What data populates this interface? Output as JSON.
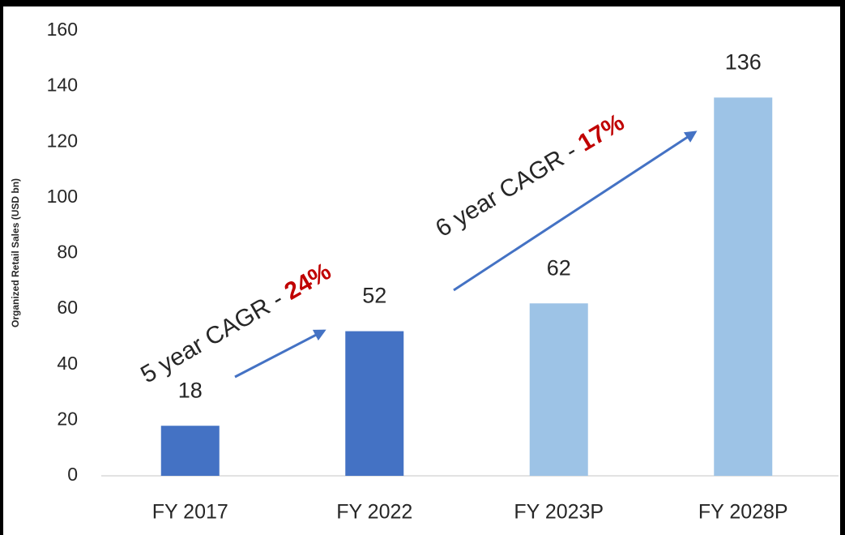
{
  "chart_data": {
    "type": "bar",
    "y_label": "Organized Retail Sales (USD bn)",
    "categories": [
      "FY 2017",
      "FY 2022",
      "FY 2023P",
      "FY 2028P"
    ],
    "values": [
      18,
      52,
      62,
      136
    ],
    "colors": [
      "#4472c4",
      "#4472c4",
      "#9dc3e6",
      "#9dc3e6"
    ],
    "ylim": [
      0,
      160
    ],
    "yticks": [
      0,
      20,
      40,
      60,
      80,
      100,
      120,
      140,
      160
    ],
    "grid": false,
    "annotations": [
      {
        "text": "5 year CAGR -",
        "highlight": "24%"
      },
      {
        "text": "6 year CAGR -",
        "highlight": "17%"
      }
    ],
    "highlight_color": "#c00000",
    "arrow_color": "#4472c4"
  }
}
